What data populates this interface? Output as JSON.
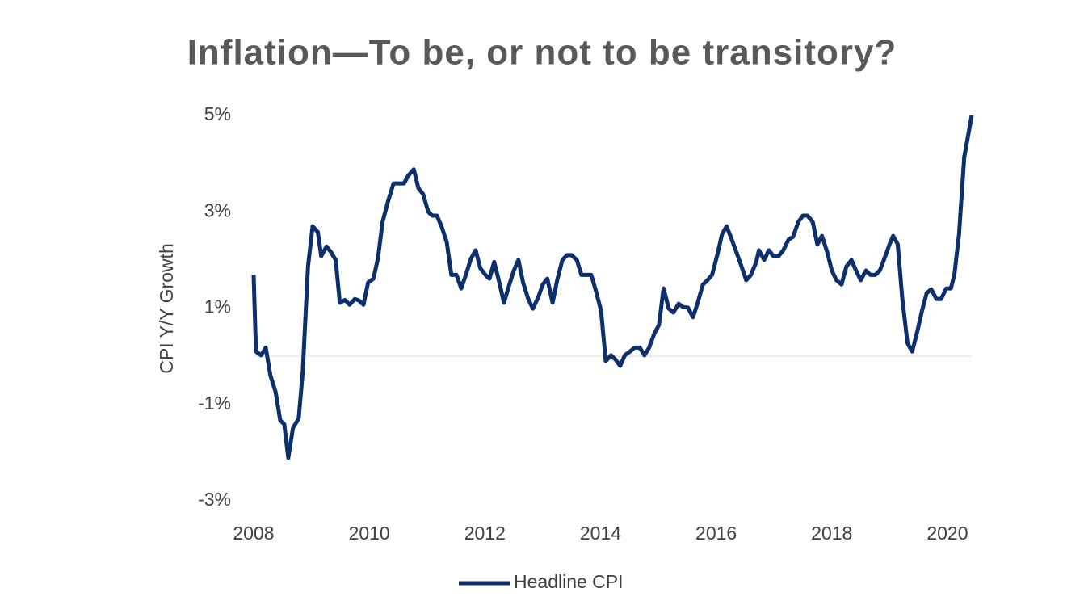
{
  "chart_data": {
    "type": "line",
    "title": "Inflation—To be, or not to be transitory?",
    "ylabel": "CPI Y/Y Growth",
    "xlim": [
      2008,
      2020.42
    ],
    "xticks": [
      2008,
      2010,
      2012,
      2014,
      2016,
      2018,
      2020
    ],
    "ylim": [
      -3,
      5
    ],
    "yticks": [
      {
        "value": -3,
        "label": "-3%"
      },
      {
        "value": -1,
        "label": "-1%"
      },
      {
        "value": 1,
        "label": "1%"
      },
      {
        "value": 3,
        "label": "3%"
      },
      {
        "value": 5,
        "label": "5%"
      }
    ],
    "legend": "bottom",
    "x": [
      2008.0,
      2008.04,
      2008.13,
      2008.21,
      2008.29,
      2008.38,
      2008.46,
      2008.53,
      2008.6,
      2008.68,
      2008.78,
      2008.85,
      2008.94,
      2009.02,
      2009.11,
      2009.17,
      2009.26,
      2009.34,
      2009.42,
      2009.49,
      2009.58,
      2009.66,
      2009.75,
      2009.82,
      2009.9,
      2009.98,
      2010.07,
      2010.15,
      2010.23,
      2010.32,
      2010.42,
      2010.51,
      2010.6,
      2010.68,
      2010.77,
      2010.85,
      2010.93,
      2011.02,
      2011.09,
      2011.17,
      2011.25,
      2011.34,
      2011.42,
      2011.51,
      2011.59,
      2011.67,
      2011.76,
      2011.84,
      2011.92,
      2012.01,
      2012.08,
      2012.16,
      2012.25,
      2012.33,
      2012.41,
      2012.5,
      2012.58,
      2012.66,
      2012.75,
      2012.83,
      2012.92,
      2013.0,
      2013.08,
      2013.17,
      2013.25,
      2013.34,
      2013.42,
      2013.5,
      2013.59,
      2013.67,
      2013.75,
      2013.84,
      2013.92,
      2014.01,
      2014.09,
      2014.18,
      2014.26,
      2014.34,
      2014.42,
      2014.51,
      2014.59,
      2014.68,
      2014.76,
      2014.84,
      2014.93,
      2015.01,
      2015.09,
      2015.18,
      2015.26,
      2015.35,
      2015.43,
      2015.51,
      2015.6,
      2015.68,
      2015.77,
      2015.85,
      2015.93,
      2016.02,
      2016.1,
      2016.18,
      2016.27,
      2016.35,
      2016.44,
      2016.52,
      2016.6,
      2016.69,
      2016.74,
      2016.83,
      2016.91,
      2016.99,
      2017.08,
      2017.16,
      2017.25,
      2017.33,
      2017.42,
      2017.5,
      2017.58,
      2017.67,
      2017.75,
      2017.83,
      2017.92,
      2018.0,
      2018.08,
      2018.17,
      2018.25,
      2018.34,
      2018.42,
      2018.5,
      2018.59,
      2018.67,
      2018.75,
      2018.83,
      2018.92,
      2019.0,
      2019.06,
      2019.14,
      2019.22,
      2019.31,
      2019.39,
      2019.48,
      2019.56,
      2019.64,
      2019.72,
      2019.81,
      2019.89,
      2019.98,
      2020.06,
      2020.12,
      2020.2,
      2020.29,
      2020.42
    ],
    "series": [
      {
        "name": "Headline CPI",
        "color": "#0d2f6b",
        "values": [
          1.69,
          0.1,
          0.02,
          0.18,
          -0.4,
          -0.74,
          -1.33,
          -1.41,
          -2.11,
          -1.49,
          -1.29,
          -0.32,
          1.86,
          2.7,
          2.58,
          2.08,
          2.28,
          2.16,
          2.0,
          1.11,
          1.17,
          1.07,
          1.19,
          1.16,
          1.07,
          1.53,
          1.61,
          2.03,
          2.79,
          3.2,
          3.59,
          3.59,
          3.59,
          3.76,
          3.88,
          3.49,
          3.37,
          3.0,
          2.92,
          2.92,
          2.7,
          2.37,
          1.69,
          1.69,
          1.41,
          1.69,
          2.03,
          2.2,
          1.83,
          1.69,
          1.61,
          1.96,
          1.53,
          1.11,
          1.44,
          1.78,
          2.0,
          1.53,
          1.19,
          0.99,
          1.22,
          1.49,
          1.61,
          1.11,
          1.58,
          2.0,
          2.1,
          2.1,
          2.0,
          1.69,
          1.69,
          1.69,
          1.36,
          0.94,
          -0.1,
          0.02,
          -0.07,
          -0.2,
          0.02,
          0.1,
          0.18,
          0.18,
          0.02,
          0.18,
          0.47,
          0.65,
          1.41,
          0.99,
          0.91,
          1.09,
          1.02,
          1.01,
          0.81,
          1.11,
          1.49,
          1.58,
          1.69,
          2.11,
          2.53,
          2.7,
          2.42,
          2.16,
          1.86,
          1.58,
          1.69,
          1.95,
          2.2,
          2.0,
          2.2,
          2.08,
          2.08,
          2.2,
          2.42,
          2.48,
          2.79,
          2.92,
          2.92,
          2.79,
          2.32,
          2.5,
          2.16,
          1.78,
          1.58,
          1.49,
          1.86,
          2.0,
          1.78,
          1.58,
          1.78,
          1.69,
          1.69,
          1.78,
          2.06,
          2.33,
          2.5,
          2.33,
          1.19,
          0.27,
          0.1,
          0.52,
          0.94,
          1.31,
          1.39,
          1.19,
          1.19,
          1.41,
          1.41,
          1.69,
          2.53,
          4.13,
          5.0
        ]
      }
    ]
  }
}
